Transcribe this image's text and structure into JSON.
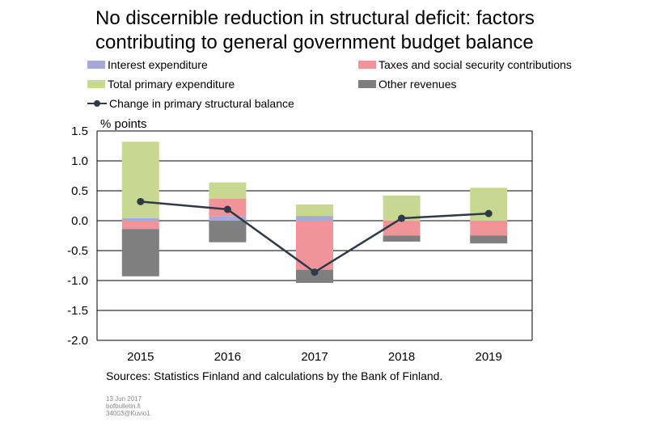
{
  "title_lines": [
    "No discernible reduction in structural deficit: factors",
    "contributing to general government budget balance"
  ],
  "sources": "Sources: Statistics Finland and calculations by the Bank of Finland.",
  "footer": {
    "date": "13 Jun 2017",
    "site": "bofbulletin.fi",
    "code": "34003@Kuvio1"
  },
  "colors": {
    "interest": "#a9a9d9",
    "taxes": "#f0949a",
    "primary": "#c8d890",
    "other": "#7f7f7f",
    "line": "#2f3a48"
  },
  "chart_data": {
    "type": "bar",
    "stacked": true,
    "ylabel": "% points",
    "categories": [
      "2015",
      "2016",
      "2017",
      "2018",
      "2019"
    ],
    "ylim": [
      -2.0,
      1.5
    ],
    "yticks": [
      "1.5",
      "1.0",
      "0.5",
      "0.0",
      "-0.5",
      "-1.0",
      "-1.5",
      "-2.0"
    ],
    "grid": true,
    "legend_position": "top",
    "series": [
      {
        "name": "Interest expenditure",
        "key": "interest",
        "values": [
          0.04,
          0.07,
          0.08,
          0.0,
          0.0
        ]
      },
      {
        "name": "Taxes and social security contributions",
        "key": "taxes",
        "values": [
          -0.14,
          0.3,
          -0.82,
          -0.25,
          -0.25
        ]
      },
      {
        "name": "Total primary expenditure",
        "key": "primary",
        "values": [
          1.28,
          0.27,
          0.19,
          0.42,
          0.55
        ]
      },
      {
        "name": "Other revenues",
        "key": "other",
        "values": [
          -0.79,
          -0.36,
          -0.22,
          -0.1,
          -0.13
        ]
      }
    ],
    "line_series": {
      "name": "Change in primary structural balance",
      "values": [
        0.32,
        0.19,
        -0.86,
        0.04,
        0.12
      ]
    }
  }
}
